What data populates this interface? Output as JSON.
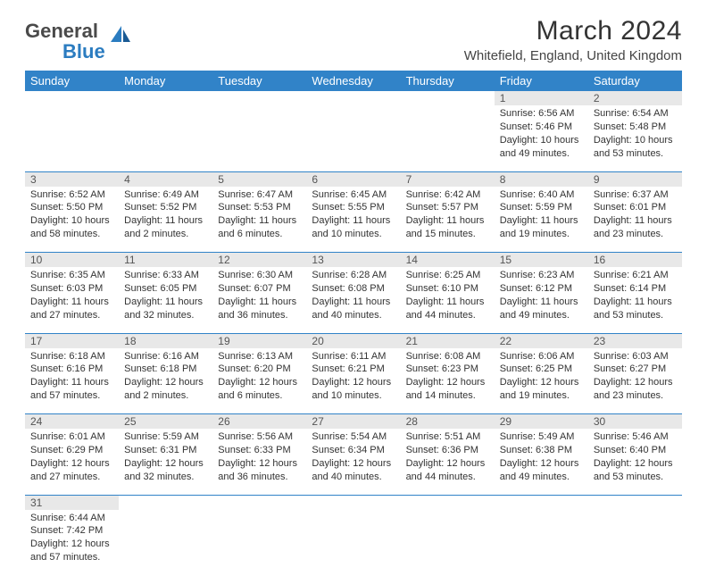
{
  "brand": {
    "name1": "General",
    "name2": "Blue"
  },
  "title": "March 2024",
  "location": "Whitefield, England, United Kingdom",
  "colors": {
    "header_bg": "#3183c8",
    "daynum_bg": "#e8e8e8",
    "row_divider": "#3183c8"
  },
  "weekdays": [
    "Sunday",
    "Monday",
    "Tuesday",
    "Wednesday",
    "Thursday",
    "Friday",
    "Saturday"
  ],
  "weeks": [
    [
      null,
      null,
      null,
      null,
      null,
      {
        "n": "1",
        "sr": "Sunrise: 6:56 AM",
        "ss": "Sunset: 5:46 PM",
        "dl": "Daylight: 10 hours and 49 minutes."
      },
      {
        "n": "2",
        "sr": "Sunrise: 6:54 AM",
        "ss": "Sunset: 5:48 PM",
        "dl": "Daylight: 10 hours and 53 minutes."
      }
    ],
    [
      {
        "n": "3",
        "sr": "Sunrise: 6:52 AM",
        "ss": "Sunset: 5:50 PM",
        "dl": "Daylight: 10 hours and 58 minutes."
      },
      {
        "n": "4",
        "sr": "Sunrise: 6:49 AM",
        "ss": "Sunset: 5:52 PM",
        "dl": "Daylight: 11 hours and 2 minutes."
      },
      {
        "n": "5",
        "sr": "Sunrise: 6:47 AM",
        "ss": "Sunset: 5:53 PM",
        "dl": "Daylight: 11 hours and 6 minutes."
      },
      {
        "n": "6",
        "sr": "Sunrise: 6:45 AM",
        "ss": "Sunset: 5:55 PM",
        "dl": "Daylight: 11 hours and 10 minutes."
      },
      {
        "n": "7",
        "sr": "Sunrise: 6:42 AM",
        "ss": "Sunset: 5:57 PM",
        "dl": "Daylight: 11 hours and 15 minutes."
      },
      {
        "n": "8",
        "sr": "Sunrise: 6:40 AM",
        "ss": "Sunset: 5:59 PM",
        "dl": "Daylight: 11 hours and 19 minutes."
      },
      {
        "n": "9",
        "sr": "Sunrise: 6:37 AM",
        "ss": "Sunset: 6:01 PM",
        "dl": "Daylight: 11 hours and 23 minutes."
      }
    ],
    [
      {
        "n": "10",
        "sr": "Sunrise: 6:35 AM",
        "ss": "Sunset: 6:03 PM",
        "dl": "Daylight: 11 hours and 27 minutes."
      },
      {
        "n": "11",
        "sr": "Sunrise: 6:33 AM",
        "ss": "Sunset: 6:05 PM",
        "dl": "Daylight: 11 hours and 32 minutes."
      },
      {
        "n": "12",
        "sr": "Sunrise: 6:30 AM",
        "ss": "Sunset: 6:07 PM",
        "dl": "Daylight: 11 hours and 36 minutes."
      },
      {
        "n": "13",
        "sr": "Sunrise: 6:28 AM",
        "ss": "Sunset: 6:08 PM",
        "dl": "Daylight: 11 hours and 40 minutes."
      },
      {
        "n": "14",
        "sr": "Sunrise: 6:25 AM",
        "ss": "Sunset: 6:10 PM",
        "dl": "Daylight: 11 hours and 44 minutes."
      },
      {
        "n": "15",
        "sr": "Sunrise: 6:23 AM",
        "ss": "Sunset: 6:12 PM",
        "dl": "Daylight: 11 hours and 49 minutes."
      },
      {
        "n": "16",
        "sr": "Sunrise: 6:21 AM",
        "ss": "Sunset: 6:14 PM",
        "dl": "Daylight: 11 hours and 53 minutes."
      }
    ],
    [
      {
        "n": "17",
        "sr": "Sunrise: 6:18 AM",
        "ss": "Sunset: 6:16 PM",
        "dl": "Daylight: 11 hours and 57 minutes."
      },
      {
        "n": "18",
        "sr": "Sunrise: 6:16 AM",
        "ss": "Sunset: 6:18 PM",
        "dl": "Daylight: 12 hours and 2 minutes."
      },
      {
        "n": "19",
        "sr": "Sunrise: 6:13 AM",
        "ss": "Sunset: 6:20 PM",
        "dl": "Daylight: 12 hours and 6 minutes."
      },
      {
        "n": "20",
        "sr": "Sunrise: 6:11 AM",
        "ss": "Sunset: 6:21 PM",
        "dl": "Daylight: 12 hours and 10 minutes."
      },
      {
        "n": "21",
        "sr": "Sunrise: 6:08 AM",
        "ss": "Sunset: 6:23 PM",
        "dl": "Daylight: 12 hours and 14 minutes."
      },
      {
        "n": "22",
        "sr": "Sunrise: 6:06 AM",
        "ss": "Sunset: 6:25 PM",
        "dl": "Daylight: 12 hours and 19 minutes."
      },
      {
        "n": "23",
        "sr": "Sunrise: 6:03 AM",
        "ss": "Sunset: 6:27 PM",
        "dl": "Daylight: 12 hours and 23 minutes."
      }
    ],
    [
      {
        "n": "24",
        "sr": "Sunrise: 6:01 AM",
        "ss": "Sunset: 6:29 PM",
        "dl": "Daylight: 12 hours and 27 minutes."
      },
      {
        "n": "25",
        "sr": "Sunrise: 5:59 AM",
        "ss": "Sunset: 6:31 PM",
        "dl": "Daylight: 12 hours and 32 minutes."
      },
      {
        "n": "26",
        "sr": "Sunrise: 5:56 AM",
        "ss": "Sunset: 6:33 PM",
        "dl": "Daylight: 12 hours and 36 minutes."
      },
      {
        "n": "27",
        "sr": "Sunrise: 5:54 AM",
        "ss": "Sunset: 6:34 PM",
        "dl": "Daylight: 12 hours and 40 minutes."
      },
      {
        "n": "28",
        "sr": "Sunrise: 5:51 AM",
        "ss": "Sunset: 6:36 PM",
        "dl": "Daylight: 12 hours and 44 minutes."
      },
      {
        "n": "29",
        "sr": "Sunrise: 5:49 AM",
        "ss": "Sunset: 6:38 PM",
        "dl": "Daylight: 12 hours and 49 minutes."
      },
      {
        "n": "30",
        "sr": "Sunrise: 5:46 AM",
        "ss": "Sunset: 6:40 PM",
        "dl": "Daylight: 12 hours and 53 minutes."
      }
    ],
    [
      {
        "n": "31",
        "sr": "Sunrise: 6:44 AM",
        "ss": "Sunset: 7:42 PM",
        "dl": "Daylight: 12 hours and 57 minutes."
      },
      null,
      null,
      null,
      null,
      null,
      null
    ]
  ]
}
